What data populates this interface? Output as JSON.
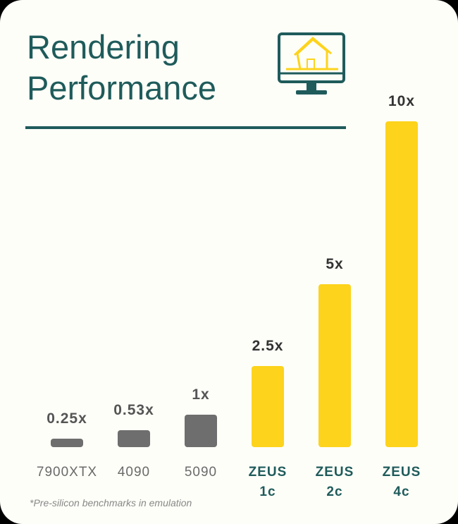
{
  "chart_data": {
    "type": "bar",
    "title": "Rendering Performance",
    "categories": [
      "7900XTX",
      "4090",
      "5090",
      "ZEUS 1c",
      "ZEUS 2c",
      "ZEUS 4c"
    ],
    "values": [
      0.25,
      0.53,
      1,
      2.5,
      5,
      10
    ],
    "value_labels": [
      "0.25x",
      "0.53x",
      "1x",
      "2.5x",
      "5x",
      "10x"
    ],
    "colors": [
      "#6e6e6e",
      "#6e6e6e",
      "#6e6e6e",
      "#fdd31c",
      "#fdd31c",
      "#fdd31c"
    ],
    "category_colors": [
      "#6a6a6a",
      "#6a6a6a",
      "#6a6a6a",
      "#1f5b5b",
      "#1f5b5b",
      "#1f5b5b"
    ],
    "footnote": "*Pre-silicon benchmarks in emulation"
  }
}
